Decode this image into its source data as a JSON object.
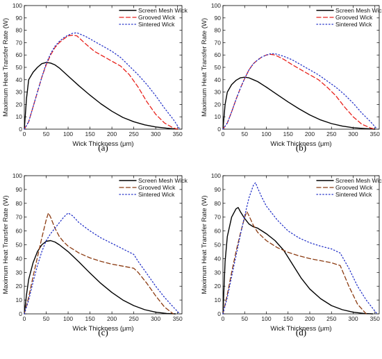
{
  "chart_data": [
    {
      "panel": "(a)",
      "type": "line",
      "xlabel": "Wick Thickness (μm)",
      "ylabel": "Maximum Heat Transfer Rate (W)",
      "xlim": [
        0,
        360
      ],
      "ylim": [
        0,
        100
      ],
      "xticks": [
        0,
        50,
        100,
        150,
        200,
        250,
        300,
        350
      ],
      "yticks": [
        0,
        10,
        20,
        30,
        40,
        50,
        60,
        70,
        80,
        90,
        100
      ],
      "legend_position": "top-right",
      "grid": false,
      "series": [
        {
          "name": "Screen Mesh Wick",
          "color": "#000000",
          "dash": "solid",
          "x": [
            0,
            5,
            10,
            20,
            30,
            40,
            50,
            60,
            70,
            80,
            100,
            125,
            150,
            175,
            200,
            225,
            250,
            275,
            300,
            325,
            350
          ],
          "y": [
            0,
            25,
            40,
            46,
            50,
            53,
            54,
            53.5,
            52,
            49.5,
            43,
            35,
            27.5,
            20.5,
            14.5,
            9.5,
            6,
            3.5,
            1.8,
            0.8,
            0
          ]
        },
        {
          "name": "Grooved Wick",
          "color": "#e8221c",
          "dash": "dashed",
          "x": [
            0,
            10,
            20,
            30,
            40,
            50,
            60,
            70,
            80,
            90,
            100,
            110,
            120,
            140,
            160,
            180,
            200,
            220,
            240,
            260,
            280,
            300,
            320,
            340,
            350
          ],
          "y": [
            0,
            6,
            18,
            30,
            42,
            52,
            60,
            66,
            70,
            73,
            75.5,
            76,
            75.5,
            69,
            63,
            59,
            55,
            51,
            44,
            34,
            22,
            12,
            5,
            1,
            0
          ]
        },
        {
          "name": "Sintered Wick",
          "color": "#2432c8",
          "dash": "dotted",
          "x": [
            0,
            10,
            20,
            30,
            40,
            50,
            60,
            70,
            80,
            90,
            100,
            110,
            120,
            140,
            160,
            180,
            200,
            220,
            240,
            260,
            280,
            300,
            320,
            340,
            355
          ],
          "y": [
            0,
            6,
            18,
            30,
            42,
            53,
            61,
            67,
            71,
            74,
            76,
            77.5,
            78,
            75,
            71,
            67,
            63,
            58,
            51,
            44,
            36,
            27,
            17,
            8,
            0
          ]
        }
      ]
    },
    {
      "panel": "(b)",
      "type": "line",
      "xlabel": "Wick Thickness (μm)",
      "ylabel": "Maximum Heat Transfer Rate (W)",
      "xlim": [
        0,
        360
      ],
      "ylim": [
        0,
        100
      ],
      "xticks": [
        0,
        50,
        100,
        150,
        200,
        250,
        300,
        350
      ],
      "yticks": [
        0,
        10,
        20,
        30,
        40,
        50,
        60,
        70,
        80,
        90,
        100
      ],
      "legend_position": "top-right",
      "grid": false,
      "series": [
        {
          "name": "Screen Mesh Wick",
          "color": "#000000",
          "dash": "solid",
          "x": [
            0,
            5,
            10,
            20,
            30,
            40,
            50,
            60,
            70,
            80,
            100,
            125,
            150,
            175,
            200,
            225,
            250,
            275,
            300,
            325,
            350
          ],
          "y": [
            0,
            20,
            30,
            36,
            39.5,
            41.5,
            42,
            41.5,
            40,
            38.5,
            34,
            28,
            22,
            16.5,
            11.5,
            7.5,
            4.5,
            2.5,
            1.2,
            0.5,
            0
          ]
        },
        {
          "name": "Grooved Wick",
          "color": "#e8221c",
          "dash": "dashed",
          "x": [
            0,
            10,
            20,
            30,
            40,
            50,
            60,
            70,
            80,
            90,
            100,
            110,
            120,
            140,
            160,
            180,
            200,
            220,
            240,
            260,
            280,
            300,
            320,
            340,
            350
          ],
          "y": [
            0,
            5,
            14,
            24,
            33,
            41,
            48,
            53,
            56,
            58.5,
            60,
            60.5,
            60,
            56.5,
            52,
            48,
            44,
            40,
            34,
            27,
            18,
            10,
            4,
            1,
            0
          ]
        },
        {
          "name": "Sintered Wick",
          "color": "#2432c8",
          "dash": "dotted",
          "x": [
            0,
            10,
            20,
            30,
            40,
            50,
            60,
            70,
            80,
            90,
            100,
            110,
            120,
            140,
            160,
            180,
            200,
            220,
            240,
            260,
            280,
            300,
            320,
            340,
            355
          ],
          "y": [
            0,
            5,
            14,
            24,
            33,
            41,
            48,
            53,
            56,
            58.5,
            60,
            61,
            61,
            59,
            56,
            52,
            48,
            44,
            39,
            34,
            28,
            21,
            13,
            6,
            0
          ]
        }
      ]
    },
    {
      "panel": "(c)",
      "type": "line",
      "xlabel": "Wick Thickness (μm)",
      "ylabel": "Maximum Heat Transfer Rate (W)",
      "xlim": [
        0,
        360
      ],
      "ylim": [
        0,
        100
      ],
      "xticks": [
        0,
        50,
        100,
        150,
        200,
        250,
        300,
        350
      ],
      "yticks": [
        0,
        10,
        20,
        30,
        40,
        50,
        60,
        70,
        80,
        90,
        100
      ],
      "legend_position": "top-right",
      "grid": false,
      "series": [
        {
          "name": "Screen Mesh Wick",
          "color": "#000000",
          "dash": "solid",
          "x": [
            0,
            5,
            10,
            20,
            30,
            40,
            50,
            60,
            70,
            80,
            100,
            125,
            150,
            175,
            200,
            225,
            250,
            275,
            300,
            325,
            345
          ],
          "y": [
            0,
            14,
            25,
            37,
            45,
            50,
            52.5,
            53,
            52,
            50,
            45,
            37.5,
            29.5,
            22,
            15.5,
            10,
            6,
            3,
            1.2,
            0.3,
            0
          ]
        },
        {
          "name": "Grooved Wick",
          "color": "#8b3a10",
          "dash": "dashed",
          "x": [
            0,
            10,
            20,
            30,
            40,
            50,
            55,
            60,
            70,
            80,
            90,
            100,
            125,
            150,
            175,
            200,
            225,
            250,
            260,
            280,
            300,
            320,
            340
          ],
          "y": [
            0,
            12,
            27,
            41,
            55,
            68,
            73,
            70,
            62,
            56,
            52,
            49,
            44,
            40.5,
            38,
            36,
            34.5,
            33,
            30,
            22,
            13,
            5,
            0
          ]
        },
        {
          "name": "Sintered Wick",
          "color": "#2432c8",
          "dash": "dotted",
          "x": [
            0,
            10,
            20,
            30,
            40,
            50,
            60,
            70,
            80,
            90,
            100,
            110,
            125,
            150,
            175,
            200,
            225,
            250,
            260,
            280,
            300,
            320,
            340,
            355
          ],
          "y": [
            0,
            10,
            23,
            35,
            45,
            53,
            58,
            62,
            66,
            70,
            73,
            71,
            66,
            60,
            55,
            51,
            47,
            43,
            38,
            29,
            20,
            12,
            5,
            0
          ]
        }
      ]
    },
    {
      "panel": "(d)",
      "type": "line",
      "xlabel": "Wick Thickness (μm)",
      "ylabel": "Maximum Heat Transfer Rate (W)",
      "xlim": [
        0,
        360
      ],
      "ylim": [
        0,
        100
      ],
      "xticks": [
        0,
        50,
        100,
        150,
        200,
        250,
        300,
        350
      ],
      "yticks": [
        0,
        10,
        20,
        30,
        40,
        50,
        60,
        70,
        80,
        90,
        100
      ],
      "legend_position": "top-right",
      "grid": false,
      "series": [
        {
          "name": "Screen Mesh Wick",
          "color": "#000000",
          "dash": "solid",
          "x": [
            0,
            5,
            10,
            20,
            30,
            35,
            40,
            50,
            60,
            70,
            80,
            100,
            120,
            140,
            160,
            180,
            200,
            225,
            250,
            275,
            300,
            325,
            345
          ],
          "y": [
            0,
            38,
            56,
            70,
            76,
            77,
            74,
            69,
            65,
            63,
            62,
            58,
            53,
            46,
            36,
            26,
            18,
            11,
            6,
            3,
            1.2,
            0.3,
            0
          ]
        },
        {
          "name": "Grooved Wick",
          "color": "#8b3a10",
          "dash": "dashed",
          "x": [
            0,
            10,
            20,
            30,
            40,
            50,
            55,
            60,
            70,
            80,
            100,
            125,
            150,
            175,
            200,
            225,
            250,
            270,
            290,
            310,
            330
          ],
          "y": [
            0,
            14,
            30,
            45,
            58,
            70,
            74,
            71,
            64,
            59,
            53,
            48,
            44.5,
            42,
            40,
            38.5,
            37,
            35,
            20,
            7,
            0
          ]
        },
        {
          "name": "Sintered Wick",
          "color": "#2432c8",
          "dash": "dotted",
          "x": [
            0,
            10,
            20,
            30,
            40,
            50,
            60,
            70,
            75,
            80,
            90,
            100,
            125,
            150,
            175,
            200,
            225,
            250,
            270,
            290,
            310,
            330,
            355
          ],
          "y": [
            0,
            12,
            27,
            42,
            57,
            71,
            84,
            93,
            95,
            91,
            84,
            78,
            68,
            60,
            55,
            51.5,
            49,
            47,
            44,
            33,
            20,
            10,
            0
          ]
        }
      ]
    }
  ]
}
